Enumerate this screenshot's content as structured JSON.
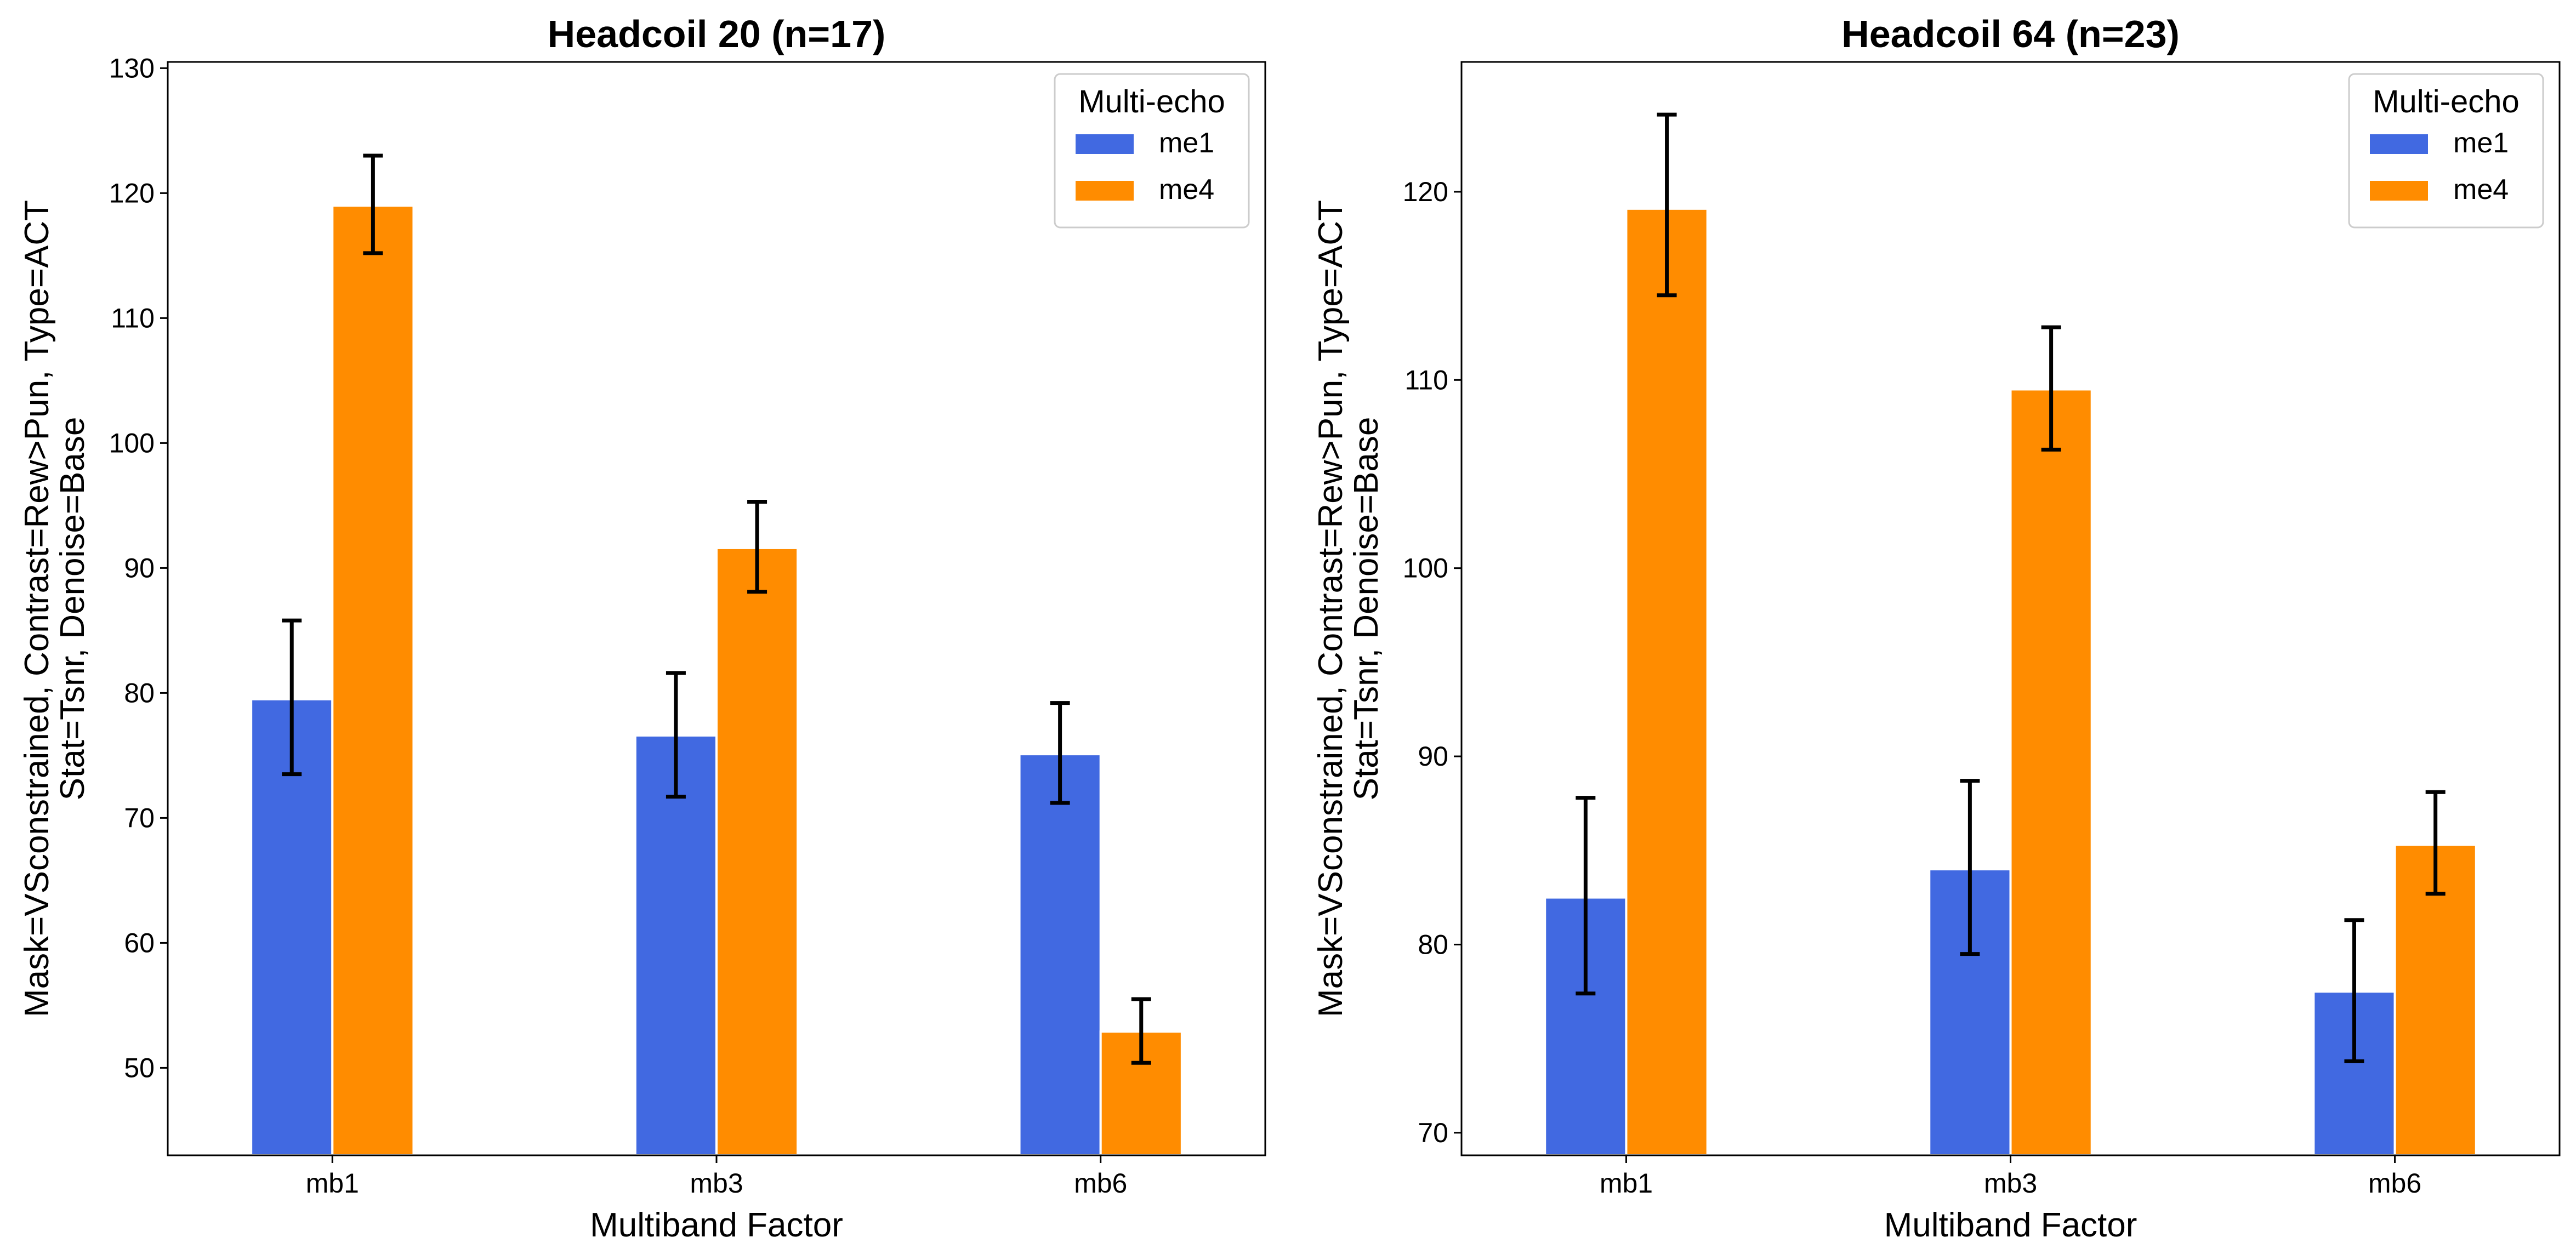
{
  "chart_data": [
    {
      "type": "bar",
      "title": "Headcoil 20 (n=17)",
      "xlabel": "Multiband Factor",
      "ylabel_lines": [
        "Mask=VSconstrained, Contrast=Rew>Pun, Type=ACT",
        "Stat=Tsnr, Denoise=Base"
      ],
      "categories": [
        "mb1",
        "mb3",
        "mb6"
      ],
      "ylim": [
        43,
        130.5
      ],
      "yticks": [
        50,
        60,
        70,
        80,
        90,
        100,
        110,
        120,
        130
      ],
      "legend": {
        "title": "Multi-echo",
        "position": "top-right"
      },
      "series": [
        {
          "name": "me1",
          "color": "#4169E1",
          "values": [
            79.5,
            76.6,
            75.1
          ],
          "err_low": [
            73.5,
            71.7,
            71.2
          ],
          "err_high": [
            85.8,
            81.6,
            79.2
          ]
        },
        {
          "name": "me4",
          "color": "#FF8C00",
          "values": [
            119.0,
            91.6,
            52.9
          ],
          "err_low": [
            115.2,
            88.1,
            50.4
          ],
          "err_high": [
            123.0,
            95.3,
            55.5
          ]
        }
      ]
    },
    {
      "type": "bar",
      "title": "Headcoil 64 (n=23)",
      "xlabel": "Multiband Factor",
      "ylabel_lines": [
        "Mask=VSconstrained, Contrast=Rew>Pun, Type=ACT",
        "Stat=Tsnr, Denoise=Base"
      ],
      "categories": [
        "mb1",
        "mb3",
        "mb6"
      ],
      "ylim": [
        68.8,
        126.9
      ],
      "yticks": [
        70,
        80,
        90,
        100,
        110,
        120
      ],
      "legend": {
        "title": "Multi-echo",
        "position": "top-right"
      },
      "series": [
        {
          "name": "me1",
          "color": "#4169E1",
          "values": [
            82.5,
            84.0,
            77.5
          ],
          "err_low": [
            77.4,
            79.5,
            73.8
          ],
          "err_high": [
            87.8,
            88.7,
            81.3
          ]
        },
        {
          "name": "me4",
          "color": "#FF8C00",
          "values": [
            119.1,
            109.5,
            85.3
          ],
          "err_low": [
            114.5,
            106.3,
            82.7
          ],
          "err_high": [
            124.1,
            112.8,
            88.1
          ]
        }
      ]
    }
  ]
}
